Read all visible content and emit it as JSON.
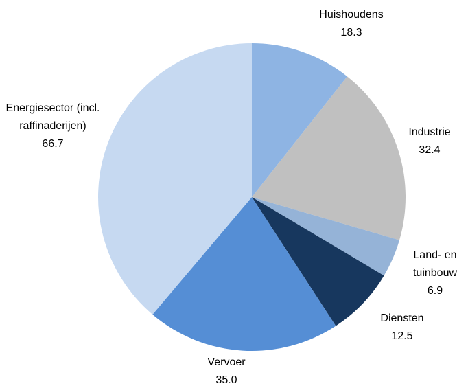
{
  "chart_data": {
    "type": "pie",
    "categories": [
      "Huishoudens",
      "Industrie",
      "Land- en tuinbouw",
      "Diensten",
      "Vervoer",
      "Energiesector (incl. raffinaderijen)"
    ],
    "values": [
      18.3,
      32.4,
      6.9,
      12.5,
      35.0,
      66.7
    ],
    "value_labels": [
      "18.3",
      "32.4",
      "6.9",
      "12.5",
      "35.0",
      "66.7"
    ],
    "colors": [
      "#8eb4e3",
      "#c0c0c0",
      "#95b3d7",
      "#17375e",
      "#558ed5",
      "#c6d9f1"
    ]
  }
}
